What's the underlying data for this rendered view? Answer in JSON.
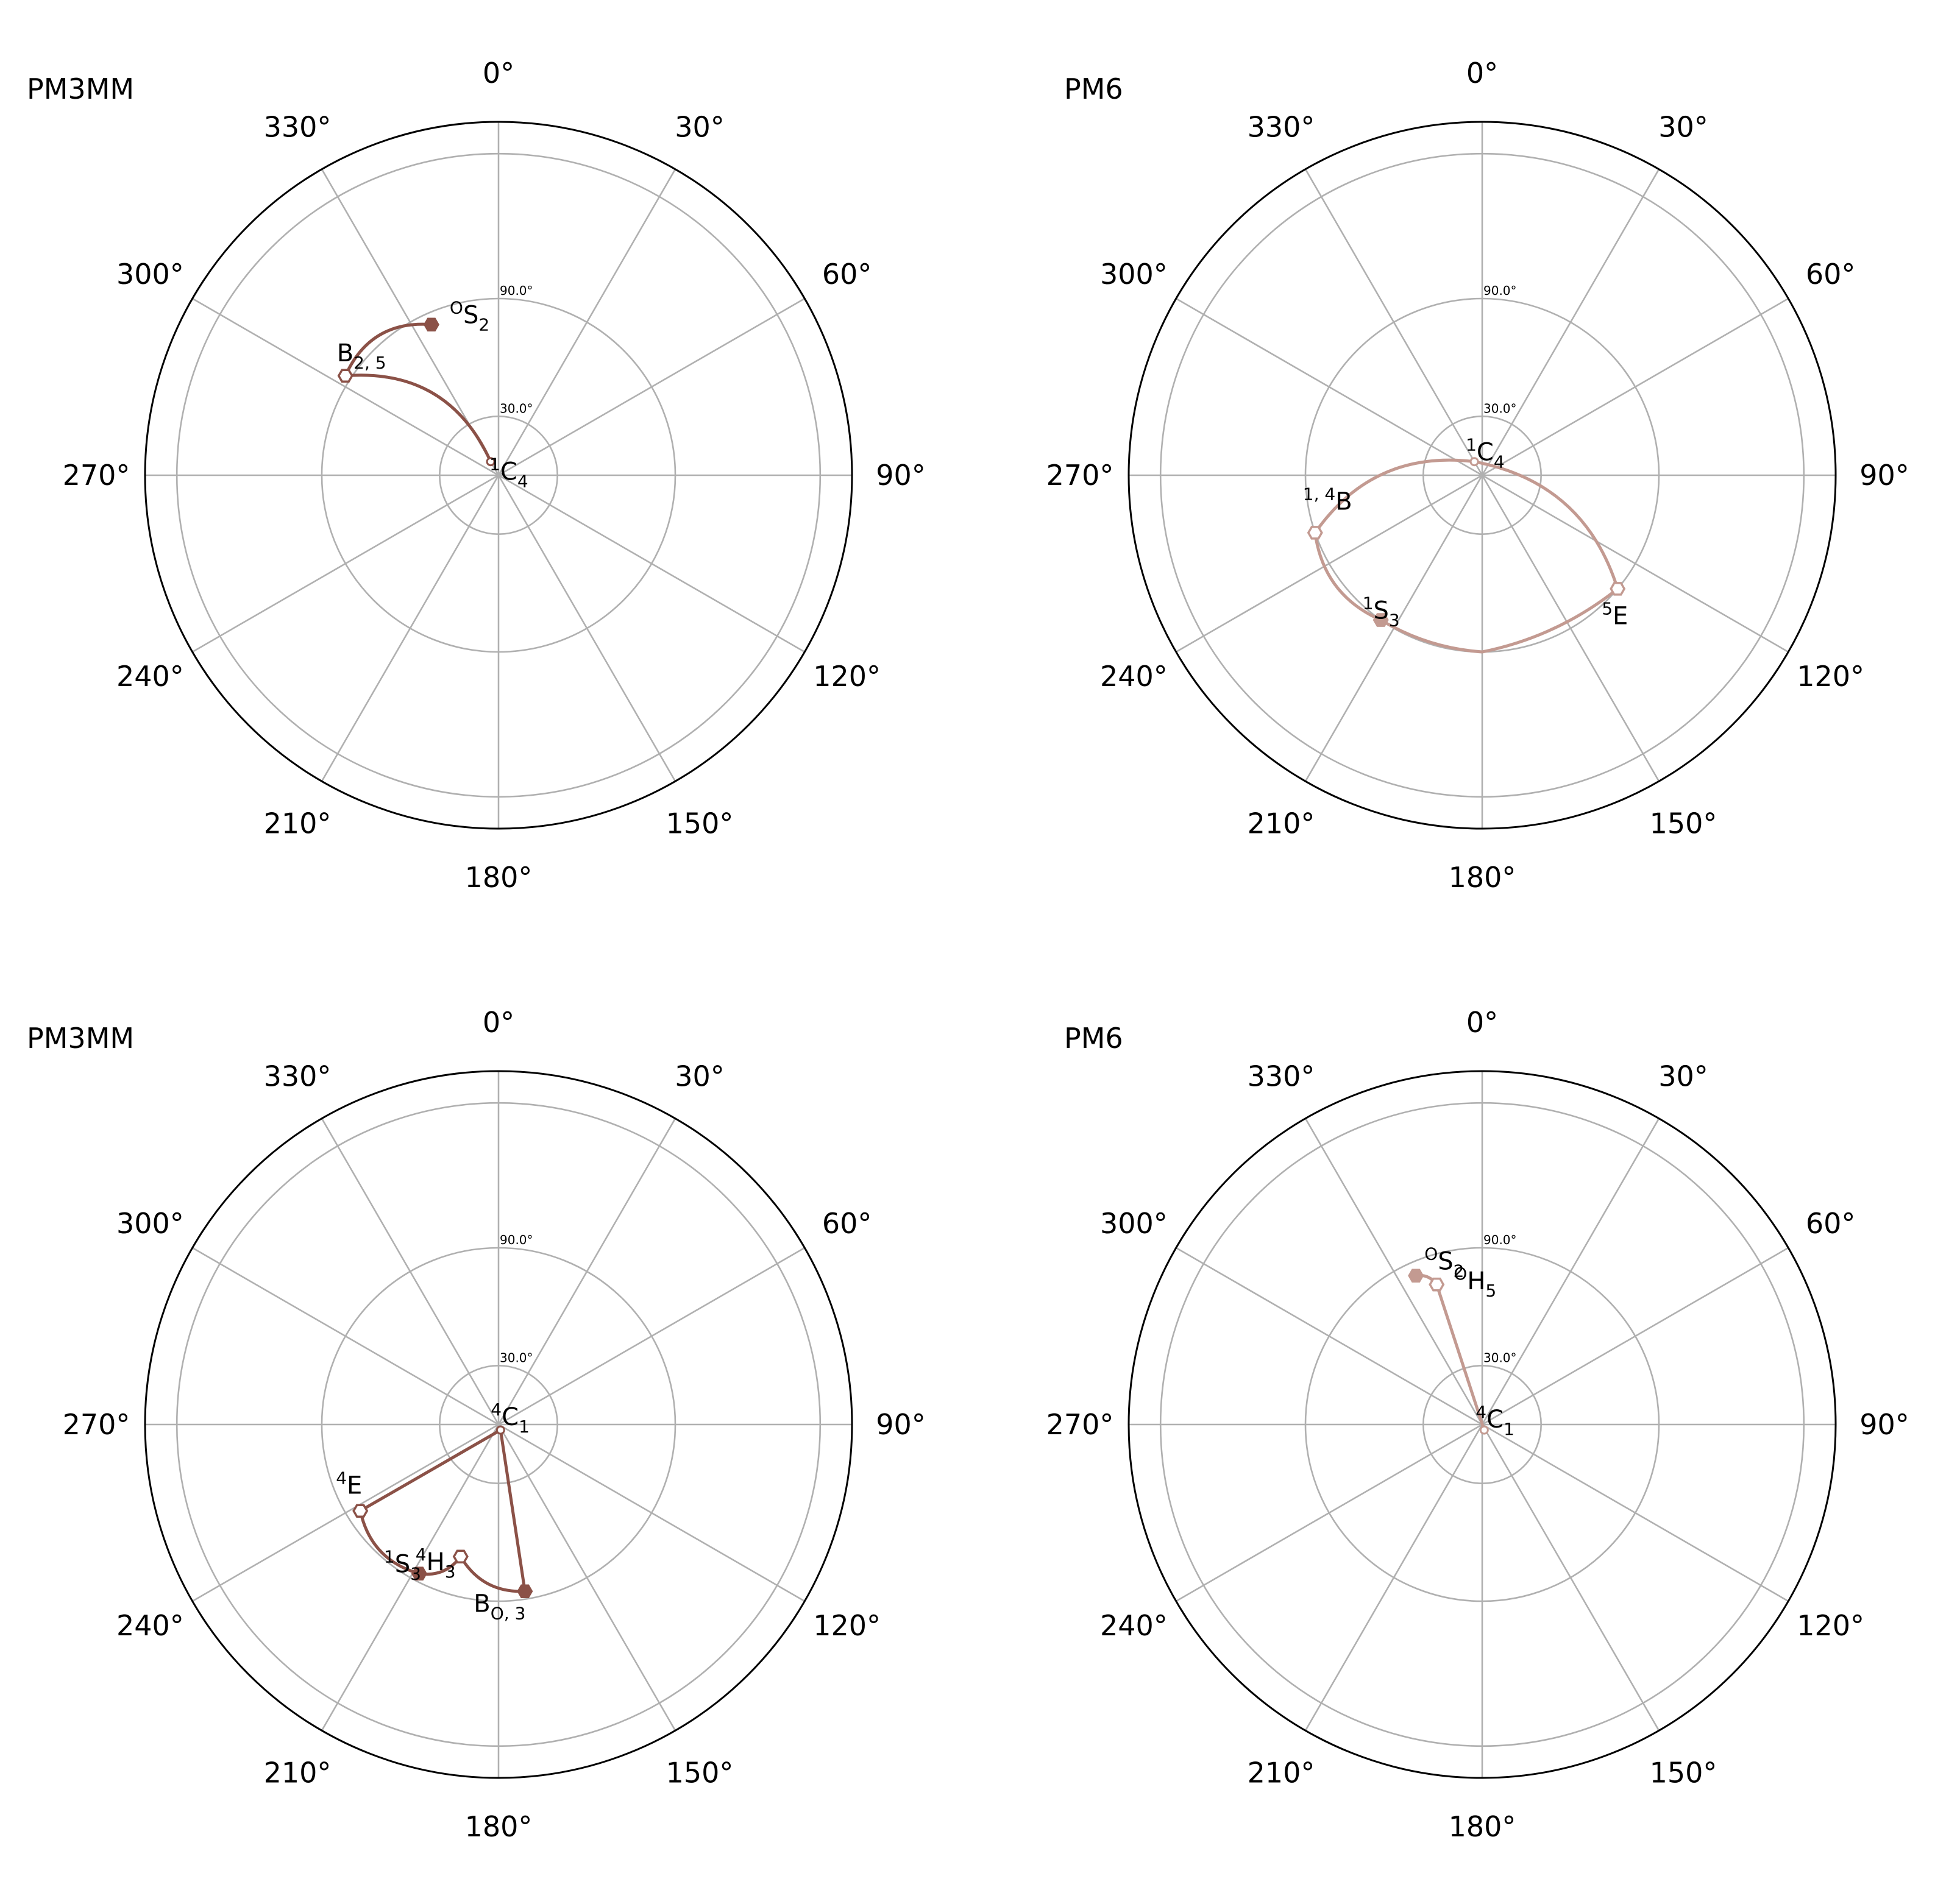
{
  "chart_data": [
    {
      "type": "polar-pathway",
      "title": "PM3MM",
      "color": "#8b5147",
      "theta_ticks": [
        "0°",
        "30°",
        "60°",
        "90°",
        "120°",
        "150°",
        "180°",
        "210°",
        "240°",
        "270°",
        "300°",
        "330°"
      ],
      "radial_ticks": [
        "30.0°",
        "90.0°"
      ],
      "rlim": [
        0,
        180
      ],
      "theta_direction": "clockwise",
      "theta_zero": "top",
      "grid": true,
      "points": [
        {
          "theta": 330,
          "r": 8,
          "marker": "none",
          "label": {
            "sup": "1",
            "base": "C",
            "sub": "4"
          }
        },
        {
          "theta": 303,
          "r": 93,
          "marker": "open",
          "label": {
            "sup": "",
            "base": "B",
            "sub": "2, 5"
          }
        },
        {
          "theta": 336,
          "r": 84,
          "marker": "filled",
          "label": {
            "sup": "O",
            "base": "S",
            "sub": "2"
          }
        }
      ],
      "path": [
        {
          "from": 0,
          "to": 1,
          "bend": 0.35
        },
        {
          "from": 1,
          "to": 2,
          "bend": 0.35
        }
      ]
    },
    {
      "type": "polar-pathway",
      "title": "PM6",
      "color": "#c39a91",
      "theta_ticks": [
        "0°",
        "30°",
        "60°",
        "90°",
        "120°",
        "150°",
        "180°",
        "210°",
        "240°",
        "270°",
        "300°",
        "330°"
      ],
      "radial_ticks": [
        "30.0°",
        "90.0°"
      ],
      "rlim": [
        0,
        180
      ],
      "theta_direction": "clockwise",
      "theta_zero": "top",
      "grid": true,
      "points": [
        {
          "theta": 330,
          "r": 8,
          "marker": "none",
          "label": {
            "sup": "1",
            "base": "C",
            "sub": "4"
          }
        },
        {
          "theta": 251,
          "r": 90,
          "marker": "open",
          "label": {
            "sup": "1, 4",
            "base": "B",
            "sub": ""
          }
        },
        {
          "theta": 215,
          "r": 90,
          "marker": "filled",
          "label": {
            "sup": "1",
            "base": "S",
            "sub": "3"
          }
        },
        {
          "theta": 180,
          "r": 90,
          "marker": "none",
          "label": null
        },
        {
          "theta": 130,
          "r": 90,
          "marker": "open",
          "label": {
            "sup": "5",
            "base": "E",
            "sub": ""
          }
        }
      ],
      "path": [
        {
          "from": 0,
          "to": 1,
          "bend": 0.3
        },
        {
          "from": 1,
          "to": 2,
          "bend": 0.28
        },
        {
          "from": 2,
          "to": 3,
          "bend": 0.12
        },
        {
          "from": 3,
          "to": 4,
          "bend": 0.12
        },
        {
          "from": 4,
          "to": 0,
          "bend": 0.3
        }
      ]
    },
    {
      "type": "polar-pathway",
      "title": "PM3MM",
      "color": "#8b5147",
      "theta_ticks": [
        "0°",
        "30°",
        "60°",
        "90°",
        "120°",
        "150°",
        "180°",
        "210°",
        "240°",
        "270°",
        "300°",
        "330°"
      ],
      "radial_ticks": [
        "30.0°",
        "90.0°"
      ],
      "rlim": [
        0,
        180
      ],
      "theta_direction": "clockwise",
      "theta_zero": "top",
      "grid": true,
      "points": [
        {
          "theta": 160,
          "r": 3,
          "marker": "none",
          "label": {
            "sup": "4",
            "base": "C",
            "sub": "1"
          }
        },
        {
          "theta": 238,
          "r": 83,
          "marker": "open",
          "label": {
            "sup": "4",
            "base": "E",
            "sub": ""
          }
        },
        {
          "theta": 208,
          "r": 86,
          "marker": "filled",
          "label": {
            "sup": "1",
            "base": "S",
            "sub": "3"
          }
        },
        {
          "theta": 196,
          "r": 70,
          "marker": "open",
          "label": {
            "sup": "4",
            "base": "H",
            "sub": "3"
          }
        },
        {
          "theta": 171,
          "r": 86,
          "marker": "filled",
          "label": {
            "sup": "",
            "base": "B",
            "sub": "O, 3"
          }
        }
      ],
      "path": [
        {
          "from": 0,
          "to": 1,
          "bend": 0
        },
        {
          "from": 1,
          "to": 2,
          "bend": 0.3
        },
        {
          "from": 2,
          "to": 3,
          "bend": 0.3
        },
        {
          "from": 3,
          "to": 4,
          "bend": 0.3
        },
        {
          "from": 4,
          "to": 0,
          "bend": 0
        }
      ]
    },
    {
      "type": "polar-pathway",
      "title": "PM6",
      "color": "#c39a91",
      "theta_ticks": [
        "0°",
        "30°",
        "60°",
        "90°",
        "120°",
        "150°",
        "180°",
        "210°",
        "240°",
        "270°",
        "300°",
        "330°"
      ],
      "radial_ticks": [
        "30.0°",
        "90.0°"
      ],
      "rlim": [
        0,
        180
      ],
      "theta_direction": "clockwise",
      "theta_zero": "top",
      "grid": true,
      "points": [
        {
          "theta": 160,
          "r": 3,
          "marker": "none",
          "label": {
            "sup": "4",
            "base": "C",
            "sub": "1"
          }
        },
        {
          "theta": 342,
          "r": 75,
          "marker": "open",
          "label": {
            "sup": "O",
            "base": "H",
            "sub": "5"
          }
        },
        {
          "theta": 336,
          "r": 83,
          "marker": "filled",
          "label": {
            "sup": "O",
            "base": "S",
            "sub": "2"
          }
        }
      ],
      "path": [
        {
          "from": 0,
          "to": 1,
          "bend": 0
        },
        {
          "from": 1,
          "to": 2,
          "bend": 0.3
        }
      ]
    }
  ]
}
